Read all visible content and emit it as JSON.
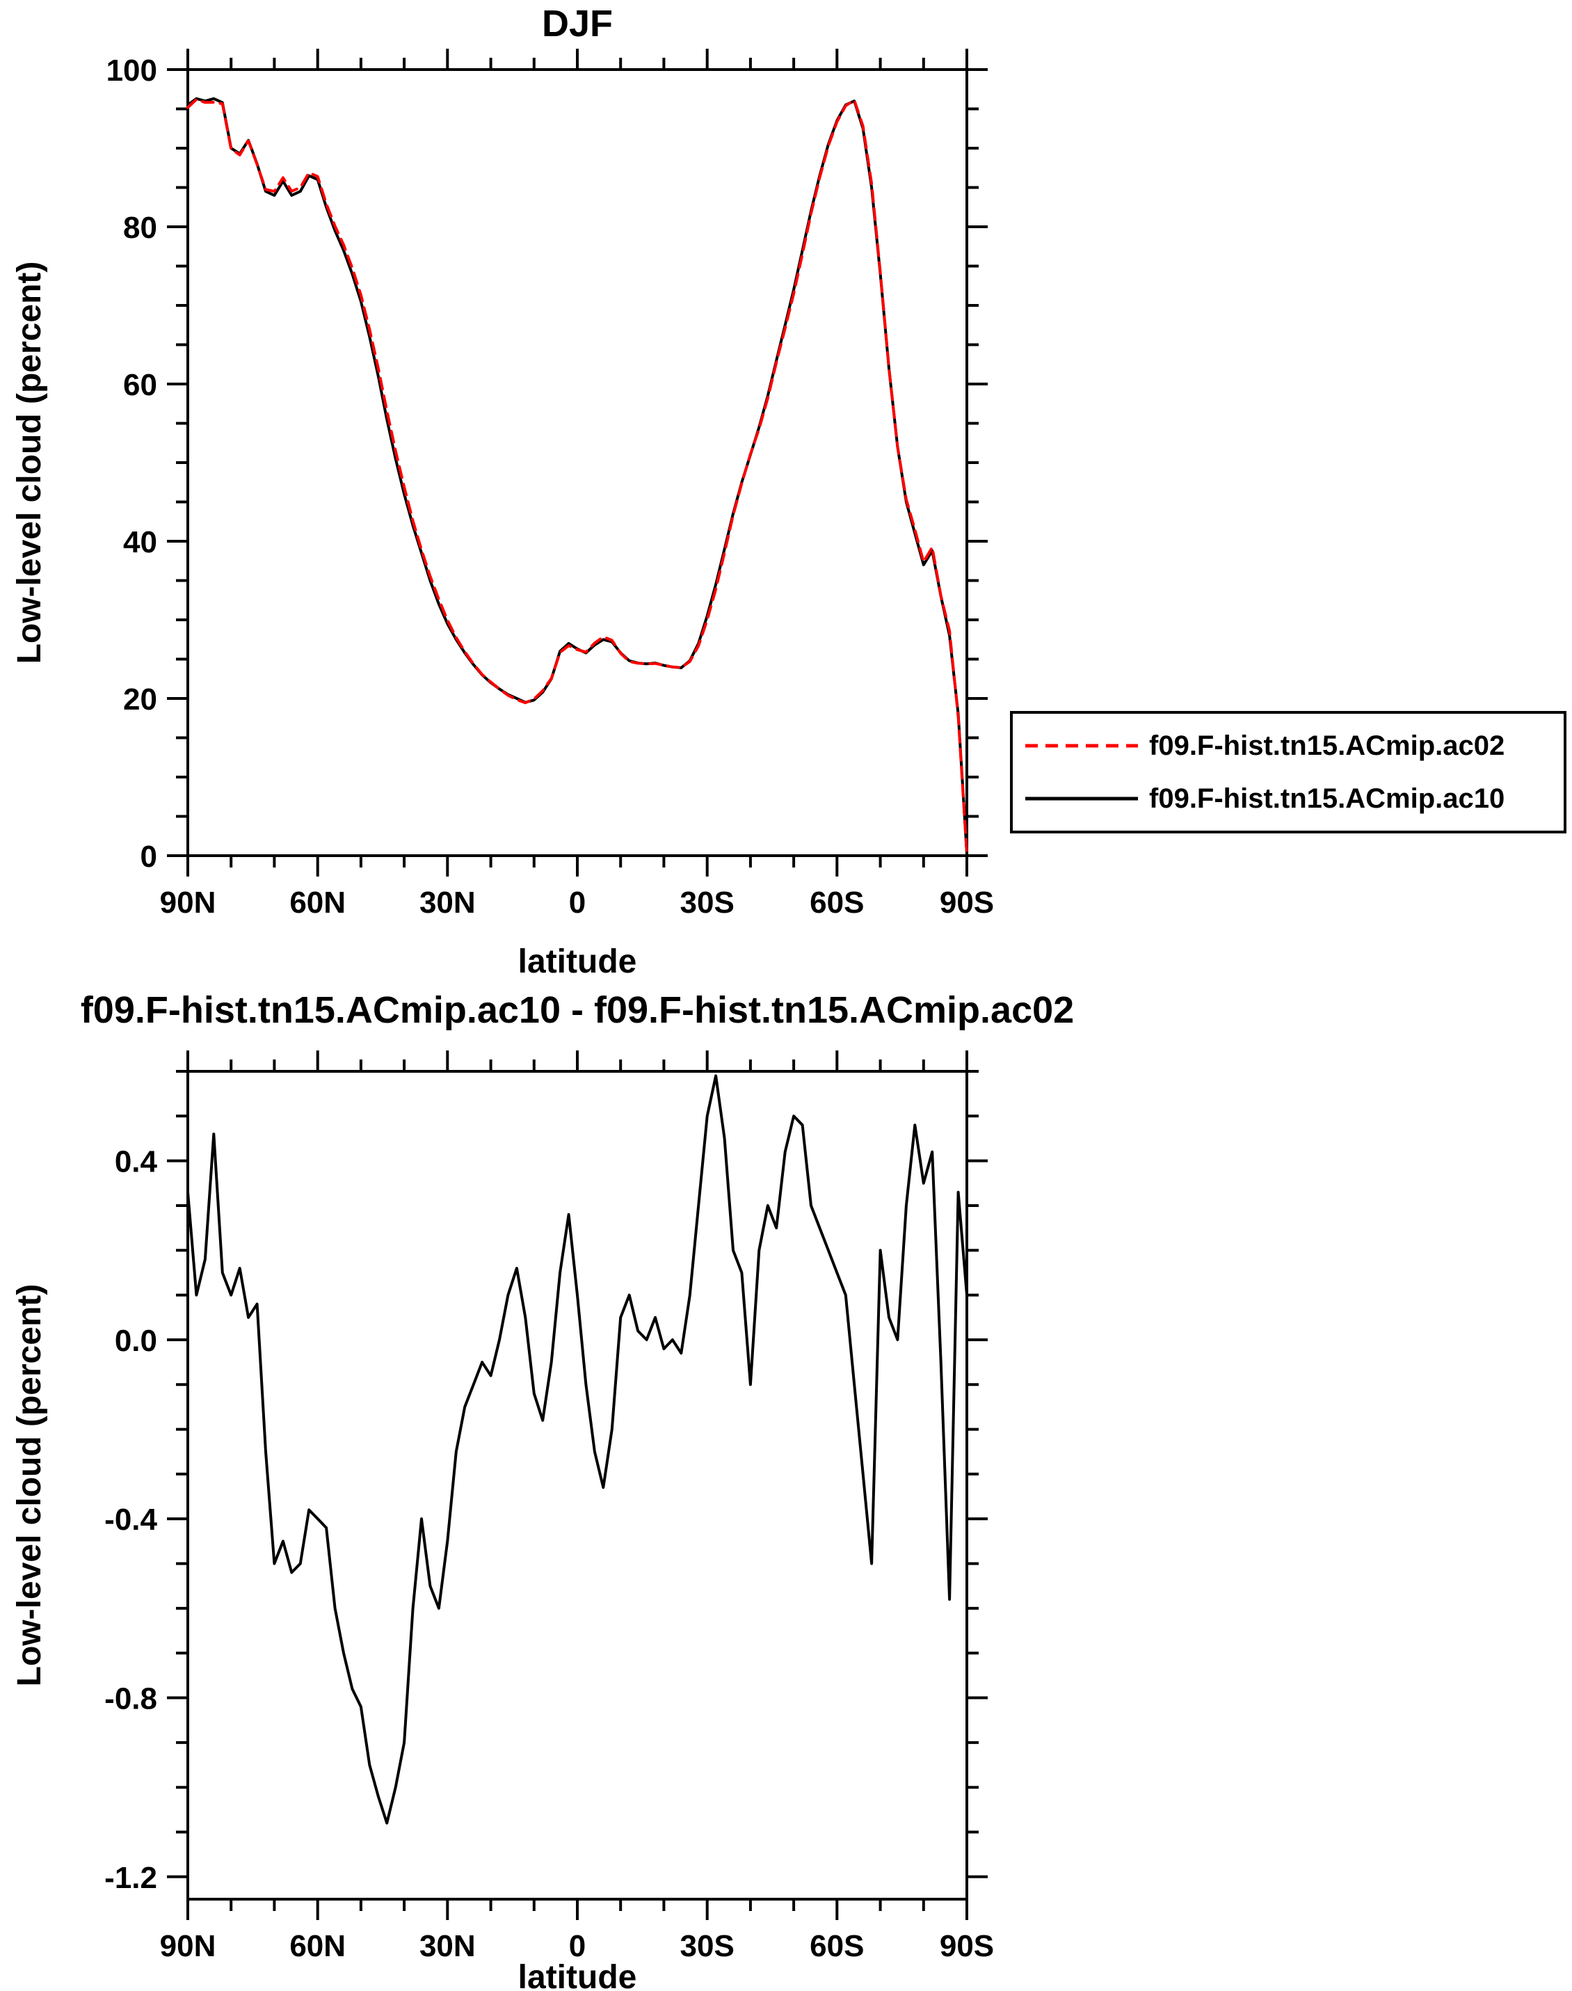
{
  "chart_data": [
    {
      "type": "line",
      "title": "DJF",
      "xlabel": "latitude",
      "ylabel": "Low-level cloud (percent)",
      "xlim": [
        90,
        -90
      ],
      "ylim": [
        0,
        100
      ],
      "grid": false,
      "x_ticks": {
        "values": [
          90,
          60,
          30,
          0,
          -30,
          -60,
          -90
        ],
        "labels": [
          "90N",
          "60N",
          "30N",
          "0",
          "30S",
          "60S",
          "90S"
        ],
        "minor_step": 10
      },
      "y_ticks": {
        "values": [
          0,
          20,
          40,
          60,
          80,
          100
        ],
        "labels": [
          "0",
          "20",
          "40",
          "60",
          "80",
          "100"
        ],
        "minor_step": 5
      },
      "x": [
        90,
        88,
        86,
        84,
        82,
        80,
        78,
        76,
        74,
        72,
        70,
        68,
        66,
        64,
        62,
        60,
        58,
        56,
        54,
        52,
        50,
        48,
        46,
        44,
        42,
        40,
        38,
        36,
        34,
        32,
        30,
        28,
        26,
        24,
        22,
        20,
        18,
        16,
        14,
        12,
        10,
        8,
        6,
        4,
        2,
        0,
        -2,
        -4,
        -6,
        -8,
        -10,
        -12,
        -14,
        -16,
        -18,
        -20,
        -22,
        -24,
        -26,
        -28,
        -30,
        -32,
        -34,
        -36,
        -38,
        -40,
        -42,
        -44,
        -46,
        -48,
        -50,
        -52,
        -54,
        -56,
        -58,
        -60,
        -62,
        -64,
        -66,
        -68,
        -70,
        -72,
        -74,
        -76,
        -78,
        -80,
        -82,
        -84,
        -86,
        -88,
        -90
      ],
      "series": [
        {
          "name": "f09.F-hist.tn15.ACmip.ac02",
          "color": "#ff0000",
          "style": "dashed",
          "values": [
            95.17,
            96.2,
            95.82,
            95.84,
            95.65,
            89.9,
            89.14,
            90.95,
            87.92,
            84.75,
            84.5,
            86.25,
            84.52,
            85.0,
            86.88,
            86.4,
            82.92,
            80.1,
            77.7,
            74.78,
            71.32,
            66.95,
            62.02,
            56.58,
            51.5,
            46.9,
            42.6,
            38.9,
            35.55,
            32.6,
            29.95,
            27.75,
            25.95,
            24.4,
            23.05,
            22.08,
            21.2,
            20.4,
            19.84,
            19.45,
            19.92,
            20.98,
            22.55,
            25.85,
            26.72,
            26.2,
            25.9,
            27.05,
            27.83,
            27.4,
            25.75,
            24.7,
            24.48,
            24.4,
            24.45,
            24.22,
            24.0,
            23.93,
            24.7,
            26.7,
            30.0,
            33.91,
            38.55,
            43.3,
            47.35,
            51.1,
            54.3,
            58.2,
            62.75,
            67.08,
            71.5,
            76.52,
            81.7,
            86.25,
            90.3,
            93.35,
            95.4,
            96.1,
            92.8,
            85.5,
            74.2,
            62.05,
            52.0,
            45.3,
            41.48,
            37.35,
            39.22,
            33.05,
            28.58,
            17.67,
            0.2
          ]
        },
        {
          "name": "f09.F-hist.tn15.ACmip.ac10",
          "color": "#000000",
          "style": "solid",
          "values": [
            95.5,
            96.3,
            96.0,
            96.3,
            95.8,
            90.0,
            89.3,
            91.0,
            88.0,
            84.5,
            84.0,
            85.8,
            84.0,
            84.5,
            86.5,
            86.0,
            82.5,
            79.5,
            77.0,
            74.0,
            70.5,
            66.0,
            61.0,
            55.5,
            50.5,
            46.0,
            42.0,
            38.5,
            35.0,
            32.0,
            29.5,
            27.5,
            25.8,
            24.3,
            23.0,
            22.0,
            21.2,
            20.5,
            20.0,
            19.5,
            19.8,
            20.8,
            22.5,
            26.0,
            27.0,
            26.3,
            25.8,
            26.8,
            27.5,
            27.2,
            25.8,
            24.8,
            24.5,
            24.4,
            24.5,
            24.2,
            24.0,
            23.9,
            24.8,
            27.0,
            30.5,
            34.5,
            39.0,
            43.5,
            47.5,
            51.0,
            54.5,
            58.5,
            63.0,
            67.5,
            72.0,
            77.0,
            82.0,
            86.5,
            90.5,
            93.5,
            95.5,
            96.0,
            92.5,
            85.0,
            74.0,
            62.0,
            52.0,
            45.0,
            41.0,
            37.0,
            38.8,
            33.0,
            28.0,
            18.0,
            0.3
          ]
        }
      ],
      "legend": {
        "position": "outside-right-bottom",
        "entries": [
          "f09.F-hist.tn15.ACmip.ac02",
          "f09.F-hist.tn15.ACmip.ac10"
        ]
      }
    },
    {
      "type": "line",
      "title": "f09.F-hist.tn15.ACmip.ac10 - f09.F-hist.tn15.ACmip.ac02",
      "xlabel": "latitude",
      "ylabel": "Low-level cloud (percent)",
      "xlim": [
        90,
        -90
      ],
      "ylim": [
        -1.25,
        0.6
      ],
      "grid": false,
      "x_ticks": {
        "values": [
          90,
          60,
          30,
          0,
          -30,
          -60,
          -90
        ],
        "labels": [
          "90N",
          "60N",
          "30N",
          "0",
          "30S",
          "60S",
          "90S"
        ],
        "minor_step": 10
      },
      "y_ticks": {
        "values": [
          -1.2,
          -0.8,
          -0.4,
          0,
          0.4
        ],
        "labels": [
          "-1.2",
          "-0.8",
          "-0.4",
          "0.0",
          "0.4"
        ],
        "minor_step": 0.1
      },
      "x": [
        90,
        88,
        86,
        84,
        82,
        80,
        78,
        76,
        74,
        72,
        70,
        68,
        66,
        64,
        62,
        60,
        58,
        56,
        54,
        52,
        50,
        48,
        46,
        44,
        42,
        40,
        38,
        36,
        34,
        32,
        30,
        28,
        26,
        24,
        22,
        20,
        18,
        16,
        14,
        12,
        10,
        8,
        6,
        4,
        2,
        0,
        -2,
        -4,
        -6,
        -8,
        -10,
        -12,
        -14,
        -16,
        -18,
        -20,
        -22,
        -24,
        -26,
        -28,
        -30,
        -32,
        -34,
        -36,
        -38,
        -40,
        -42,
        -44,
        -46,
        -48,
        -50,
        -52,
        -54,
        -56,
        -58,
        -60,
        -62,
        -64,
        -66,
        -68,
        -70,
        -72,
        -74,
        -76,
        -78,
        -80,
        -82,
        -84,
        -86,
        -88,
        -90
      ],
      "series": [
        {
          "color": "#000000",
          "style": "solid",
          "values": [
            0.33,
            0.1,
            0.18,
            0.46,
            0.15,
            0.1,
            0.16,
            0.05,
            0.08,
            -0.25,
            -0.5,
            -0.45,
            -0.52,
            -0.5,
            -0.38,
            -0.4,
            -0.42,
            -0.6,
            -0.7,
            -0.78,
            -0.82,
            -0.95,
            -1.02,
            -1.08,
            -1.0,
            -0.9,
            -0.6,
            -0.4,
            -0.55,
            -0.6,
            -0.45,
            -0.25,
            -0.15,
            -0.1,
            -0.05,
            -0.08,
            0.0,
            0.1,
            0.16,
            0.05,
            -0.12,
            -0.18,
            -0.05,
            0.15,
            0.28,
            0.1,
            -0.1,
            -0.25,
            -0.33,
            -0.2,
            0.05,
            0.1,
            0.02,
            0.0,
            0.05,
            -0.02,
            0.0,
            -0.03,
            0.1,
            0.3,
            0.5,
            0.59,
            0.45,
            0.2,
            0.15,
            -0.1,
            0.2,
            0.3,
            0.25,
            0.42,
            0.5,
            0.48,
            0.3,
            0.25,
            0.2,
            0.15,
            0.1,
            -0.1,
            -0.3,
            -0.5,
            0.2,
            0.05,
            0.0,
            0.3,
            0.48,
            0.35,
            0.42,
            -0.05,
            -0.58,
            0.33,
            0.1
          ]
        }
      ]
    }
  ]
}
